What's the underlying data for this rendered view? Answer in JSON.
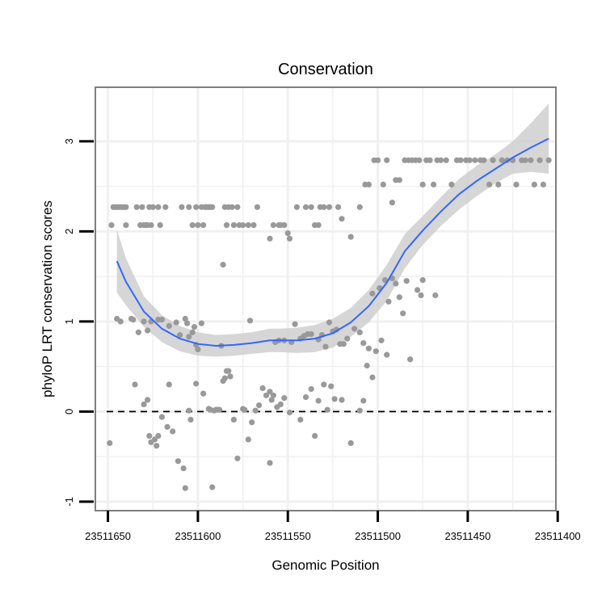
{
  "chart_data": {
    "type": "scatter",
    "title": "Conservation",
    "xlabel": "Genomic Position",
    "ylabel": "phyloP LRT conservation scores",
    "xlim": [
      23511657,
      23511401
    ],
    "ylim": [
      -1.1,
      3.6
    ],
    "x_ticks": [
      23511650,
      23511600,
      23511550,
      23511500,
      23511450,
      23511400
    ],
    "x_tick_labels": [
      "23511650",
      "23511600",
      "23511550",
      "23511500",
      "23511450",
      "23511400"
    ],
    "y_ticks": [
      -1,
      0,
      1,
      2,
      3
    ],
    "y_tick_labels": [
      "-1",
      "0",
      "1",
      "2",
      "3"
    ],
    "reference_line": {
      "y": 0,
      "style": "dashed"
    },
    "grid": true,
    "colors": {
      "points": "#999999",
      "smooth_line": "#3366FF",
      "ribbon": "#cccccc",
      "panel_border": "#7f7f7f",
      "grid": "#f0f0f0"
    },
    "points": [
      [
        23511648,
        2.07
      ],
      [
        23511647,
        2.27
      ],
      [
        23511646,
        2.27
      ],
      [
        23511645,
        2.27
      ],
      [
        23511644,
        2.27
      ],
      [
        23511643,
        2.27
      ],
      [
        23511642,
        2.27
      ],
      [
        23511641,
        2.27
      ],
      [
        23511640,
        2.07
      ],
      [
        23511640,
        2.27
      ],
      [
        23511634,
        2.27
      ],
      [
        23511632,
        2.07
      ],
      [
        23511631,
        2.27
      ],
      [
        23511630,
        2.07
      ],
      [
        23511629,
        2.07
      ],
      [
        23511628,
        2.07
      ],
      [
        23511627,
        2.27
      ],
      [
        23511626,
        2.07
      ],
      [
        23511625,
        2.27
      ],
      [
        23511622,
        2.27
      ],
      [
        23511621,
        2.07
      ],
      [
        23511618,
        2.27
      ],
      [
        23511609,
        2.27
      ],
      [
        23511605,
        2.27
      ],
      [
        23511603,
        2.07
      ],
      [
        23511601,
        2.27
      ],
      [
        23511600,
        2.07
      ],
      [
        23511598,
        2.27
      ],
      [
        23511597,
        2.07
      ],
      [
        23511596,
        2.27
      ],
      [
        23511595,
        2.27
      ],
      [
        23511594,
        2.27
      ],
      [
        23511593,
        2.27
      ],
      [
        23511592,
        2.27
      ],
      [
        23511585,
        2.27
      ],
      [
        23511584,
        2.07
      ],
      [
        23511583,
        2.27
      ],
      [
        23511581,
        2.27
      ],
      [
        23511580,
        2.07
      ],
      [
        23511578,
        2.27
      ],
      [
        23511577,
        2.07
      ],
      [
        23511575,
        2.07
      ],
      [
        23511572,
        2.07
      ],
      [
        23511569,
        2.07
      ],
      [
        23511567,
        2.27
      ],
      [
        23511560,
        1.92
      ],
      [
        23511558,
        2.07
      ],
      [
        23511555,
        2.07
      ],
      [
        23511554,
        2.07
      ],
      [
        23511552,
        2.07
      ],
      [
        23511550,
        1.98
      ],
      [
        23511549,
        1.92
      ],
      [
        23511545,
        2.27
      ],
      [
        23511540,
        2.27
      ],
      [
        23511537,
        2.27
      ],
      [
        23511535,
        2.07
      ],
      [
        23511533,
        2.07
      ],
      [
        23511532,
        2.27
      ],
      [
        23511530,
        2.27
      ],
      [
        23511527,
        2.27
      ],
      [
        23511522,
        2.27
      ],
      [
        23511520,
        2.14
      ],
      [
        23511515,
        1.94
      ],
      [
        23511510,
        2.27
      ],
      [
        23511507,
        2.52
      ],
      [
        23511505,
        2.52
      ],
      [
        23511502,
        2.79
      ],
      [
        23511500,
        2.79
      ],
      [
        23511497,
        2.52
      ],
      [
        23511495,
        2.79
      ],
      [
        23511492,
        2.32
      ],
      [
        23511490,
        2.57
      ],
      [
        23511488,
        2.57
      ],
      [
        23511485,
        2.79
      ],
      [
        23511483,
        2.79
      ],
      [
        23511481,
        2.79
      ],
      [
        23511479,
        2.79
      ],
      [
        23511477,
        2.79
      ],
      [
        23511475,
        2.52
      ],
      [
        23511473,
        2.79
      ],
      [
        23511471,
        2.79
      ],
      [
        23511469,
        2.52
      ],
      [
        23511467,
        2.79
      ],
      [
        23511465,
        2.79
      ],
      [
        23511462,
        2.79
      ],
      [
        23511459,
        2.52
      ],
      [
        23511456,
        2.79
      ],
      [
        23511454,
        2.79
      ],
      [
        23511451,
        2.79
      ],
      [
        23511449,
        2.79
      ],
      [
        23511446,
        2.79
      ],
      [
        23511443,
        2.79
      ],
      [
        23511441,
        2.79
      ],
      [
        23511438,
        2.52
      ],
      [
        23511436,
        2.79
      ],
      [
        23511433,
        2.52
      ],
      [
        23511431,
        2.79
      ],
      [
        23511428,
        2.79
      ],
      [
        23511425,
        2.79
      ],
      [
        23511423,
        2.52
      ],
      [
        23511420,
        2.79
      ],
      [
        23511418,
        2.79
      ],
      [
        23511415,
        2.79
      ],
      [
        23511413,
        2.52
      ],
      [
        23511410,
        2.79
      ],
      [
        23511408,
        2.52
      ],
      [
        23511405,
        2.79
      ],
      [
        23511645,
        1.03
      ],
      [
        23511643,
        1.0
      ],
      [
        23511637,
        1.03
      ],
      [
        23511636,
        1.02
      ],
      [
        23511633,
        0.88
      ],
      [
        23511630,
        1.0
      ],
      [
        23511628,
        0.9
      ],
      [
        23511626,
        1.0
      ],
      [
        23511622,
        1.02
      ],
      [
        23511620,
        1.02
      ],
      [
        23511616,
        0.95
      ],
      [
        23511612,
        0.99
      ],
      [
        23511610,
        0.85
      ],
      [
        23511607,
        1.03
      ],
      [
        23511606,
        0.98
      ],
      [
        23511605,
        0.83
      ],
      [
        23511603,
        0.88
      ],
      [
        23511602,
        0.94
      ],
      [
        23511601,
        0.74
      ],
      [
        23511600,
        0.69
      ],
      [
        23511598,
        0.98
      ],
      [
        23511587,
        0.73
      ],
      [
        23511586,
        1.63
      ],
      [
        23511571,
        1.01
      ],
      [
        23511557,
        0.77
      ],
      [
        23511555,
        0.79
      ],
      [
        23511552,
        0.79
      ],
      [
        23511548,
        0.77
      ],
      [
        23511546,
        0.97
      ],
      [
        23511543,
        0.81
      ],
      [
        23511541,
        0.84
      ],
      [
        23511539,
        0.86
      ],
      [
        23511537,
        0.86
      ],
      [
        23511533,
        0.8
      ],
      [
        23511531,
        0.85
      ],
      [
        23511529,
        0.72
      ],
      [
        23511527,
        0.99
      ],
      [
        23511525,
        0.89
      ],
      [
        23511523,
        0.91
      ],
      [
        23511521,
        0.75
      ],
      [
        23511519,
        0.75
      ],
      [
        23511517,
        0.81
      ],
      [
        23511513,
        0.92
      ],
      [
        23511510,
        0.88
      ],
      [
        23511508,
        0.76
      ],
      [
        23511505,
        0.7
      ],
      [
        23511503,
        1.31
      ],
      [
        23511501,
        0.67
      ],
      [
        23511499,
        1.37
      ],
      [
        23511498,
        0.79
      ],
      [
        23511496,
        1.46
      ],
      [
        23511495,
        0.63
      ],
      [
        23511494,
        1.22
      ],
      [
        23511492,
        1.48
      ],
      [
        23511490,
        1.42
      ],
      [
        23511488,
        1.27
      ],
      [
        23511486,
        1.09
      ],
      [
        23511484,
        1.45
      ],
      [
        23511482,
        0.58
      ],
      [
        23511478,
        1.35
      ],
      [
        23511476,
        1.29
      ],
      [
        23511475,
        1.46
      ],
      [
        23511468,
        1.29
      ],
      [
        23511649,
        -0.35
      ],
      [
        23511635,
        0.3
      ],
      [
        23511630,
        0.08
      ],
      [
        23511628,
        0.13
      ],
      [
        23511627,
        -0.27
      ],
      [
        23511626,
        -0.34
      ],
      [
        23511624,
        -0.31
      ],
      [
        23511623,
        -0.38
      ],
      [
        23511622,
        -0.27
      ],
      [
        23511620,
        -0.06
      ],
      [
        23511617,
        -0.17
      ],
      [
        23511616,
        0.3
      ],
      [
        23511614,
        -0.22
      ],
      [
        23511611,
        -0.55
      ],
      [
        23511608,
        -0.63
      ],
      [
        23511607,
        -0.85
      ],
      [
        23511604,
        -0.09
      ],
      [
        23511601,
        0.31
      ],
      [
        23511597,
        0.2
      ],
      [
        23511594,
        0.03
      ],
      [
        23511593,
        0.02
      ],
      [
        23511591,
        0.01
      ],
      [
        23511590,
        0.02
      ],
      [
        23511589,
        0.02
      ],
      [
        23511588,
        0.02
      ],
      [
        23511586,
        0.34
      ],
      [
        23511585,
        0.37
      ],
      [
        23511584,
        0.45
      ],
      [
        23511583,
        0.45
      ],
      [
        23511582,
        0.39
      ],
      [
        23511580,
        -0.09
      ],
      [
        23511578,
        -0.52
      ],
      [
        23511575,
        0.03
      ],
      [
        23511574,
        0.02
      ],
      [
        23511572,
        -0.31
      ],
      [
        23511570,
        -0.12
      ],
      [
        23511568,
        0.01
      ],
      [
        23511566,
        0.07
      ],
      [
        23511564,
        0.26
      ],
      [
        23511562,
        0.18
      ],
      [
        23511560,
        0.22
      ],
      [
        23511559,
        0.13
      ],
      [
        23511558,
        0.18
      ],
      [
        23511556,
        0.05
      ],
      [
        23511554,
        0.08
      ],
      [
        23511552,
        0.15
      ],
      [
        23511549,
        -0.01
      ],
      [
        23511543,
        -0.09
      ],
      [
        23511540,
        0.16
      ],
      [
        23511537,
        0.25
      ],
      [
        23511535,
        -0.27
      ],
      [
        23511533,
        0.12
      ],
      [
        23511530,
        0.3
      ],
      [
        23511528,
        0.02
      ],
      [
        23511526,
        0.28
      ],
      [
        23511524,
        0.14
      ],
      [
        23511520,
        0.13
      ],
      [
        23511515,
        -0.35
      ],
      [
        23511510,
        0.01
      ],
      [
        23511508,
        0.12
      ],
      [
        23511503,
        0.38
      ],
      [
        23511506,
        0.51
      ],
      [
        23511560,
        -0.57
      ],
      [
        23511592,
        -0.84
      ],
      [
        23511605,
        0.01
      ]
    ],
    "smooth": [
      [
        23511645,
        1.67
      ],
      [
        23511640,
        1.44
      ],
      [
        23511630,
        1.11
      ],
      [
        23511620,
        0.92
      ],
      [
        23511610,
        0.81
      ],
      [
        23511600,
        0.75
      ],
      [
        23511590,
        0.73
      ],
      [
        23511580,
        0.74
      ],
      [
        23511570,
        0.76
      ],
      [
        23511560,
        0.79
      ],
      [
        23511555,
        0.79
      ],
      [
        23511545,
        0.79
      ],
      [
        23511535,
        0.81
      ],
      [
        23511525,
        0.87
      ],
      [
        23511515,
        0.99
      ],
      [
        23511505,
        1.17
      ],
      [
        23511495,
        1.43
      ],
      [
        23511485,
        1.78
      ],
      [
        23511475,
        2.01
      ],
      [
        23511465,
        2.22
      ],
      [
        23511455,
        2.41
      ],
      [
        23511445,
        2.56
      ],
      [
        23511435,
        2.69
      ],
      [
        23511425,
        2.82
      ],
      [
        23511415,
        2.93
      ],
      [
        23511405,
        3.03
      ]
    ],
    "ribbon_upper": [
      [
        23511645,
        2.02
      ],
      [
        23511640,
        1.7
      ],
      [
        23511630,
        1.28
      ],
      [
        23511620,
        1.07
      ],
      [
        23511610,
        0.95
      ],
      [
        23511600,
        0.88
      ],
      [
        23511590,
        0.85
      ],
      [
        23511580,
        0.86
      ],
      [
        23511570,
        0.88
      ],
      [
        23511560,
        0.92
      ],
      [
        23511555,
        0.92
      ],
      [
        23511545,
        0.93
      ],
      [
        23511535,
        0.96
      ],
      [
        23511525,
        1.03
      ],
      [
        23511515,
        1.15
      ],
      [
        23511505,
        1.35
      ],
      [
        23511495,
        1.63
      ],
      [
        23511485,
        1.97
      ],
      [
        23511475,
        2.17
      ],
      [
        23511465,
        2.38
      ],
      [
        23511455,
        2.58
      ],
      [
        23511445,
        2.73
      ],
      [
        23511435,
        2.85
      ],
      [
        23511425,
        3.0
      ],
      [
        23511415,
        3.2
      ],
      [
        23511405,
        3.42
      ]
    ],
    "ribbon_lower": [
      [
        23511645,
        1.32
      ],
      [
        23511640,
        1.18
      ],
      [
        23511630,
        0.94
      ],
      [
        23511620,
        0.77
      ],
      [
        23511610,
        0.67
      ],
      [
        23511600,
        0.62
      ],
      [
        23511590,
        0.61
      ],
      [
        23511580,
        0.62
      ],
      [
        23511570,
        0.64
      ],
      [
        23511560,
        0.66
      ],
      [
        23511555,
        0.66
      ],
      [
        23511545,
        0.65
      ],
      [
        23511535,
        0.66
      ],
      [
        23511525,
        0.71
      ],
      [
        23511515,
        0.83
      ],
      [
        23511505,
        0.99
      ],
      [
        23511495,
        1.23
      ],
      [
        23511485,
        1.59
      ],
      [
        23511475,
        1.85
      ],
      [
        23511465,
        2.06
      ],
      [
        23511455,
        2.24
      ],
      [
        23511445,
        2.39
      ],
      [
        23511435,
        2.53
      ],
      [
        23511425,
        2.64
      ],
      [
        23511415,
        2.66
      ],
      [
        23511405,
        2.64
      ]
    ]
  }
}
